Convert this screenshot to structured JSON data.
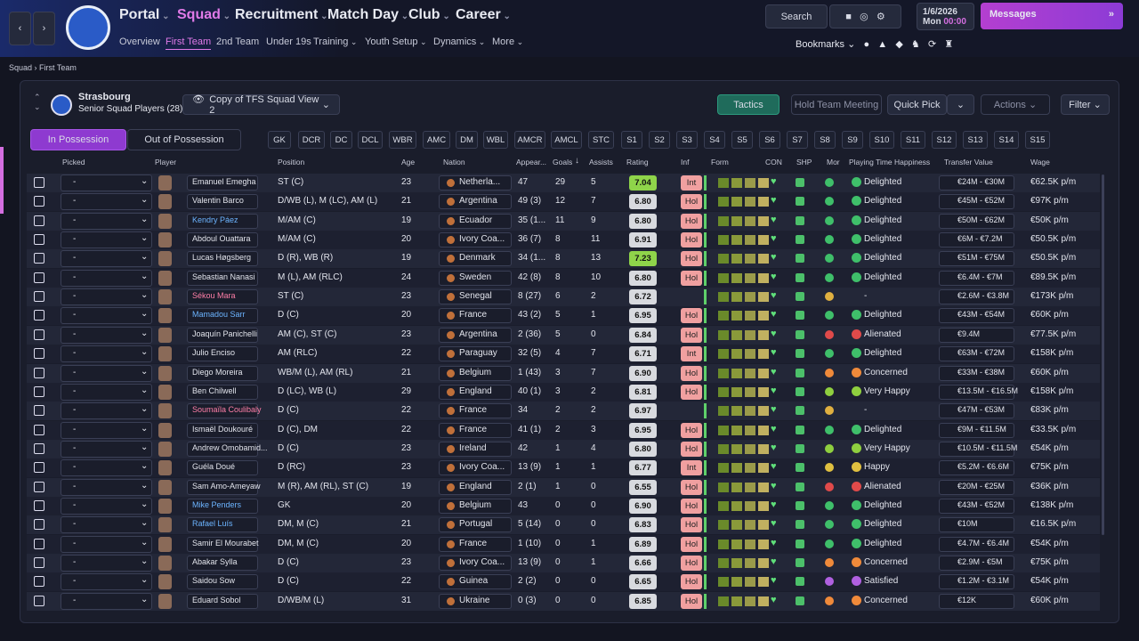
{
  "nav": {
    "main": [
      "Portal",
      "Squad",
      "Recruitment",
      "Match Day",
      "Club",
      "Career"
    ],
    "sub": [
      "Overview",
      "First Team",
      "2nd Team",
      "Under 19s",
      "Training",
      "Youth Setup",
      "Dynamics",
      "More"
    ],
    "search": "Search",
    "date": "1/6/2026",
    "day": "Mon",
    "time": "00:00",
    "messages": "Messages",
    "bookmarks": "Bookmarks"
  },
  "breadcrumb": [
    "Squad",
    "First Team"
  ],
  "team": {
    "name": "Strasbourg",
    "subtitle": "Senior Squad Players (28)",
    "view": "Copy of TFS Squad View 2"
  },
  "buttons": {
    "tactics": "Tactics",
    "meeting": "Hold Team Meeting",
    "quick_pick": "Quick Pick",
    "actions": "Actions",
    "filter": "Filter"
  },
  "tabs": [
    "In Possession",
    "Out of Possession"
  ],
  "positions": [
    "GK",
    "DCR",
    "DC",
    "DCL",
    "WBR",
    "AMC",
    "DM",
    "WBL",
    "AMCR",
    "AMCL",
    "STC",
    "S1",
    "S2",
    "S3",
    "S4",
    "S5",
    "S6",
    "S7",
    "S8",
    "S9",
    "S10",
    "S11",
    "S12",
    "S13",
    "S14",
    "S15"
  ],
  "table": {
    "headers": [
      "Picked",
      "Player",
      "Position",
      "Age",
      "Nation",
      "Appear...",
      "Goals",
      "Assists",
      "Rating",
      "Inf",
      "Form",
      "CON",
      "SHP",
      "Mor",
      "Playing Time Happiness",
      "Transfer Value",
      "Wage"
    ],
    "rows": [
      [
        "-",
        "Emanuel Emegha",
        "ST (C)",
        "23",
        "Netherla...",
        "47",
        "29",
        "5",
        "7.04",
        "Int",
        "Delighted",
        "€24M - €30M",
        "€62.5K p/m"
      ],
      [
        "-",
        "Valentin Barco",
        "D/WB (L), M (LC), AM (L)",
        "21",
        "Argentina",
        "49 (3)",
        "12",
        "7",
        "6.80",
        "Hol",
        "Delighted",
        "€45M - €52M",
        "€97K p/m"
      ],
      [
        "-",
        "Kendry Páez",
        "M/AM (C)",
        "19",
        "Ecuador",
        "35 (1...",
        "11",
        "9",
        "6.80",
        "Hol",
        "Delighted",
        "€50M - €62M",
        "€50K p/m"
      ],
      [
        "-",
        "Abdoul Ouattara",
        "M/AM (C)",
        "20",
        "Ivory Coa...",
        "36 (7)",
        "8",
        "11",
        "6.91",
        "Hol",
        "Delighted",
        "€6M - €7.2M",
        "€50.5K p/m"
      ],
      [
        "-",
        "Lucas Høgsberg",
        "D (R), WB (R)",
        "19",
        "Denmark",
        "34 (1...",
        "8",
        "13",
        "7.23",
        "Hol",
        "Delighted",
        "€51M - €75M",
        "€50.5K p/m"
      ],
      [
        "-",
        "Sebastian Nanasi",
        "M (L), AM (RLC)",
        "24",
        "Sweden",
        "42 (8)",
        "8",
        "10",
        "6.80",
        "Hol",
        "Delighted",
        "€6.4M - €7M",
        "€89.5K p/m"
      ],
      [
        "-",
        "Sékou Mara",
        "ST (C)",
        "23",
        "Senegal",
        "8 (27)",
        "6",
        "2",
        "6.72",
        null,
        "-",
        "€2.6M - €3.8M",
        "€173K p/m"
      ],
      [
        "-",
        "Mamadou Sarr",
        "D (C)",
        "20",
        "France",
        "43 (2)",
        "5",
        "1",
        "6.95",
        "Hol",
        "Delighted",
        "€43M - €54M",
        "€60K p/m"
      ],
      [
        "-",
        "Joaquín Panichelli",
        "AM (C), ST (C)",
        "23",
        "Argentina",
        "2 (36)",
        "5",
        "0",
        "6.84",
        "Hol",
        "Alienated",
        "€9.4M",
        "€77.5K p/m"
      ],
      [
        "-",
        "Julio Enciso",
        "AM (RLC)",
        "22",
        "Paraguay",
        "32 (5)",
        "4",
        "7",
        "6.71",
        "Int",
        "Delighted",
        "€63M - €72M",
        "€158K p/m"
      ],
      [
        "-",
        "Diego Moreira",
        "WB/M (L), AM (RL)",
        "21",
        "Belgium",
        "1 (43)",
        "3",
        "7",
        "6.90",
        "Hol",
        "Concerned",
        "€33M - €38M",
        "€60K p/m"
      ],
      [
        "-",
        "Ben Chilwell",
        "D (LC), WB (L)",
        "29",
        "England",
        "40 (1)",
        "3",
        "2",
        "6.81",
        "Hol",
        "Very Happy",
        "€13.5M - €16.5M",
        "€158K p/m"
      ],
      [
        "-",
        "Soumaïla Coulibaly",
        "D (C)",
        "22",
        "France",
        "34",
        "2",
        "2",
        "6.97",
        null,
        "-",
        "€47M - €53M",
        "€83K p/m"
      ],
      [
        "-",
        "Ismaël Doukouré",
        "D (C), DM",
        "22",
        "France",
        "41 (1)",
        "2",
        "3",
        "6.95",
        "Hol",
        "Delighted",
        "€9M - €11.5M",
        "€33.5K p/m"
      ],
      [
        "-",
        "Andrew Omobamid...",
        "D (C)",
        "23",
        "Ireland",
        "42",
        "1",
        "4",
        "6.80",
        "Hol",
        "Very Happy",
        "€10.5M - €11.5M",
        "€54K p/m"
      ],
      [
        "-",
        "Guéla Doué",
        "D (RC)",
        "23",
        "Ivory Coa...",
        "13 (9)",
        "1",
        "1",
        "6.77",
        "Int",
        "Happy",
        "€5.2M - €6.6M",
        "€75K p/m"
      ],
      [
        "-",
        "Sam Amo-Ameyaw",
        "M (R), AM (RL), ST (C)",
        "19",
        "England",
        "2 (1)",
        "1",
        "0",
        "6.55",
        "Hol",
        "Alienated",
        "€20M - €25M",
        "€36K p/m"
      ],
      [
        "-",
        "Mike Penders",
        "GK",
        "20",
        "Belgium",
        "43",
        "0",
        "0",
        "6.90",
        "Hol",
        "Delighted",
        "€43M - €52M",
        "€138K p/m"
      ],
      [
        "-",
        "Rafael Luís",
        "DM, M (C)",
        "21",
        "Portugal",
        "5 (14)",
        "0",
        "0",
        "6.83",
        "Hol",
        "Delighted",
        "€10M",
        "€16.5K p/m"
      ],
      [
        "-",
        "Samir El Mourabet",
        "DM, M (C)",
        "20",
        "France",
        "1 (10)",
        "0",
        "1",
        "6.89",
        "Hol",
        "Delighted",
        "€4.7M - €6.4M",
        "€54K p/m"
      ],
      [
        "-",
        "Abakar Sylla",
        "D (C)",
        "23",
        "Ivory Coa...",
        "13 (9)",
        "0",
        "1",
        "6.66",
        "Hol",
        "Concerned",
        "€2.9M - €5M",
        "€75K p/m"
      ],
      [
        "-",
        "Saidou Sow",
        "D (C)",
        "22",
        "Guinea",
        "2 (2)",
        "0",
        "0",
        "6.65",
        "Hol",
        "Satisfied",
        "€1.2M - €3.1M",
        "€54K p/m"
      ],
      [
        "-",
        "Eduard Sobol",
        "D/WB/M (L)",
        "31",
        "Ukraine",
        "0 (3)",
        "0",
        "0",
        "6.85",
        "Hol",
        "Concerned",
        "€12K",
        "€60K p/m"
      ]
    ]
  }
}
